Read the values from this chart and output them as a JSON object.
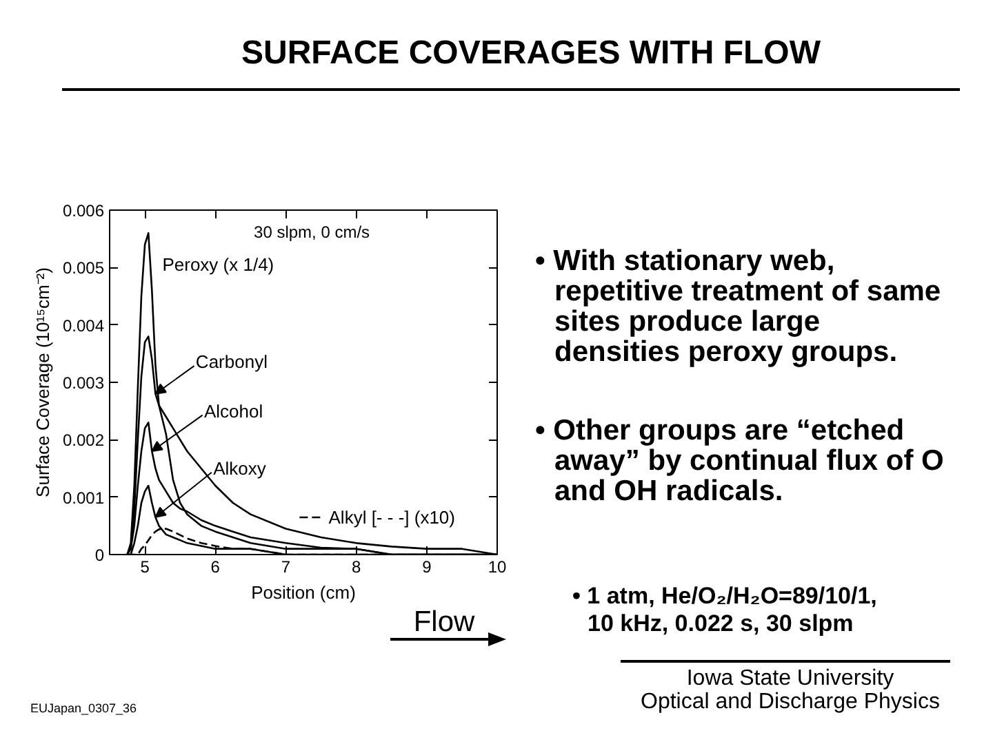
{
  "chart_data": {
    "type": "line",
    "title": "SURFACE COVERAGES WITH FLOW",
    "xlabel": "Position (cm)",
    "ylabel": "Surface Coverage (10¹⁵cm⁻²)",
    "x": [
      4.75,
      4.8,
      4.85,
      4.9,
      4.95,
      5.0,
      5.05,
      5.1,
      5.15,
      5.2,
      5.3,
      5.4,
      5.5,
      5.6,
      5.8,
      6.0,
      6.25,
      6.5,
      7.0,
      7.5,
      8.0,
      8.5,
      9.0,
      9.5,
      10.0
    ],
    "series": [
      {
        "name": "Peroxy (x 1/4)",
        "color": "#000000",
        "values": [
          0,
          0.0002,
          0.0012,
          0.0029,
          0.0045,
          0.0054,
          0.0056,
          0.0046,
          0.0033,
          0.0026,
          0.0021,
          0.0013,
          0.0009,
          0.0007,
          0.0005,
          0.0004,
          0.0003,
          0.0002,
          0.0001,
          0.0001,
          0.0001,
          0,
          0,
          0,
          0
        ]
      },
      {
        "name": "Carbonyl",
        "color": "#000000",
        "values": [
          0,
          0.0001,
          0.0008,
          0.002,
          0.0031,
          0.0037,
          0.0038,
          0.0034,
          0.0028,
          0.0026,
          0.0024,
          0.0022,
          0.002,
          0.0018,
          0.0015,
          0.0012,
          0.0009,
          0.0007,
          0.00045,
          0.0003,
          0.0002,
          0.00014,
          0.0001,
          0.0001,
          0
        ]
      },
      {
        "name": "Alcohol",
        "color": "#000000",
        "values": [
          0,
          0.0001,
          0.0005,
          0.0012,
          0.0018,
          0.0022,
          0.0023,
          0.0018,
          0.0015,
          0.0013,
          0.0011,
          0.0009,
          0.0008,
          0.00075,
          0.0006,
          0.0005,
          0.0004,
          0.0003,
          0.0002,
          0.00012,
          0.0001,
          0,
          0,
          0,
          0
        ]
      },
      {
        "name": "Alkoxy",
        "color": "#000000",
        "values": [
          0,
          0,
          0.0002,
          0.0005,
          0.0009,
          0.0011,
          0.0012,
          0.0009,
          0.00065,
          0.0005,
          0.00035,
          0.0003,
          0.00025,
          0.0002,
          0.00015,
          0.0001,
          0.0001,
          0.0001,
          0,
          0,
          0,
          0,
          0,
          0,
          0
        ]
      },
      {
        "name": "Alkyl [- - -] (x10)",
        "color": "#000000",
        "line_style": "dashed",
        "values": [
          0,
          0,
          0,
          0,
          0.0001,
          0.00016,
          0.00025,
          0.00034,
          0.0004,
          0.00044,
          0.00045,
          0.0004,
          0.00034,
          0.00028,
          0.0002,
          0.00015,
          0.0001,
          0.0001,
          0,
          0,
          0,
          0,
          0,
          0,
          0
        ]
      }
    ],
    "xlim": [
      4.5,
      10
    ],
    "ylim": [
      0,
      0.006
    ],
    "xticks": [
      5,
      6,
      7,
      8,
      9,
      10
    ],
    "yticks": [
      0,
      0.001,
      0.002,
      0.003,
      0.004,
      0.005,
      0.006
    ],
    "grid": false,
    "annotations": [
      "30 slpm, 0 cm/s",
      "• With stationary web, repetitive treatment of same sites produce large densities peroxy groups.",
      "• Other groups are “etched away” by continual flux of O and OH radicals.",
      "Flow",
      "• 1 atm, He/O₂/H₂O=89/10/1, 10 kHz, 0.022 s, 30 slpm",
      "Iowa State University",
      "Optical and Discharge Physics",
      "EUJapan_0307_36"
    ]
  }
}
